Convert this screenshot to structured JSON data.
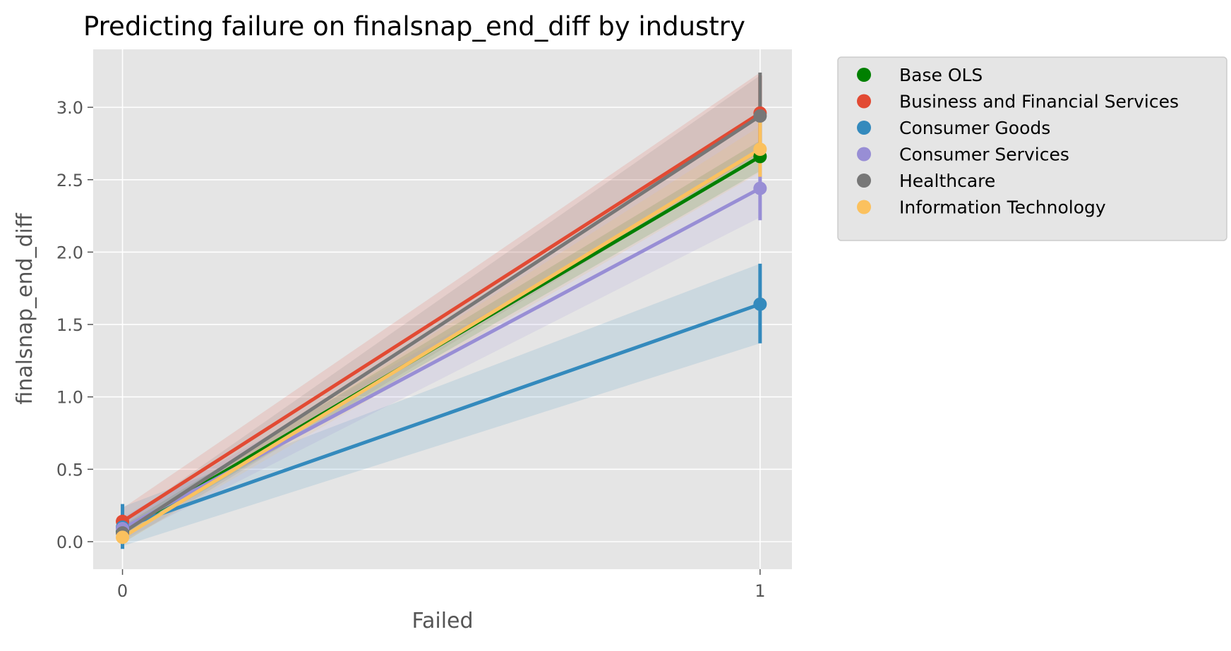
{
  "chart_data": {
    "type": "line",
    "title": "Predicting failure on finalsnap_end_diff by industry",
    "xlabel": "Failed",
    "ylabel": "finalsnap_end_diff",
    "x": [
      0,
      1
    ],
    "xticks": [
      "0",
      "1"
    ],
    "xlim": [
      -0.046,
      1.05
    ],
    "ylim": [
      -0.19,
      3.4
    ],
    "yticks": [
      "0.0",
      "0.5",
      "1.0",
      "1.5",
      "2.0",
      "2.5",
      "3.0"
    ],
    "ytick_values": [
      0.0,
      0.5,
      1.0,
      1.5,
      2.0,
      2.5,
      3.0
    ],
    "grid": true,
    "legend_position": "outside-upper-right",
    "series": [
      {
        "name": "Base OLS",
        "color": "#008000",
        "values": [
          0.07,
          2.66
        ],
        "ci_lower": [
          0.03,
          2.56
        ],
        "ci_upper": [
          0.11,
          2.77
        ],
        "err_lower": [
          0.05,
          2.62
        ],
        "err_upper": [
          0.09,
          2.71
        ]
      },
      {
        "name": "Business and Financial Services",
        "color": "#E24A33",
        "values": [
          0.14,
          2.96
        ],
        "ci_lower": [
          0.06,
          2.68
        ],
        "ci_upper": [
          0.23,
          3.24
        ],
        "err_lower": [
          0.09,
          2.7
        ],
        "err_upper": [
          0.19,
          3.22
        ]
      },
      {
        "name": "Consumer Goods",
        "color": "#348ABD",
        "values": [
          0.1,
          1.64
        ],
        "ci_lower": [
          -0.03,
          1.37
        ],
        "ci_upper": [
          0.24,
          1.92
        ],
        "err_lower": [
          -0.05,
          1.37
        ],
        "err_upper": [
          0.26,
          1.92
        ]
      },
      {
        "name": "Consumer Services",
        "color": "#988ED5",
        "values": [
          0.09,
          2.44
        ],
        "ci_lower": [
          0.01,
          2.24
        ],
        "ci_upper": [
          0.17,
          2.64
        ],
        "err_lower": [
          0.03,
          2.22
        ],
        "err_upper": [
          0.16,
          2.66
        ]
      },
      {
        "name": "Healthcare",
        "color": "#777777",
        "values": [
          0.06,
          2.94
        ],
        "ci_lower": [
          -0.01,
          2.66
        ],
        "ci_upper": [
          0.14,
          3.22
        ],
        "err_lower": [
          0.0,
          2.63
        ],
        "err_upper": [
          0.12,
          3.24
        ]
      },
      {
        "name": "Information Technology",
        "color": "#FBC15E",
        "values": [
          0.03,
          2.71
        ],
        "ci_lower": [
          -0.01,
          2.55
        ],
        "ci_upper": [
          0.07,
          2.87
        ],
        "err_lower": [
          -0.01,
          2.52
        ],
        "err_upper": [
          0.08,
          2.9
        ]
      }
    ]
  }
}
